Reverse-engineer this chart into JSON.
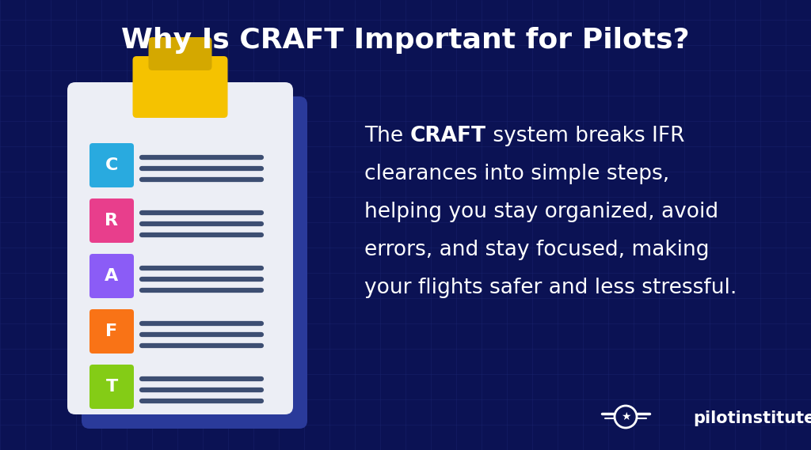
{
  "title": "Why Is CRAFT Important for Pilots?",
  "title_fontsize": 26,
  "title_color": "#ffffff",
  "bg_color": "#0b1254",
  "grid_color": "#1a2570",
  "clipboard_bg": "#eceef5",
  "clipboard_shadow": "#2a3a9a",
  "clip_color": "#f5c200",
  "clip_dark": "#d4a800",
  "craft_letters": [
    "C",
    "R",
    "A",
    "F",
    "T"
  ],
  "craft_colors": [
    "#29aadf",
    "#e83e8c",
    "#8b5cf6",
    "#f97316",
    "#84cc16"
  ],
  "body_fontsize": 19,
  "body_color": "#ffffff",
  "logo_text": "pilotinstitute",
  "logo_color": "#ffffff",
  "logo_fontsize": 15
}
